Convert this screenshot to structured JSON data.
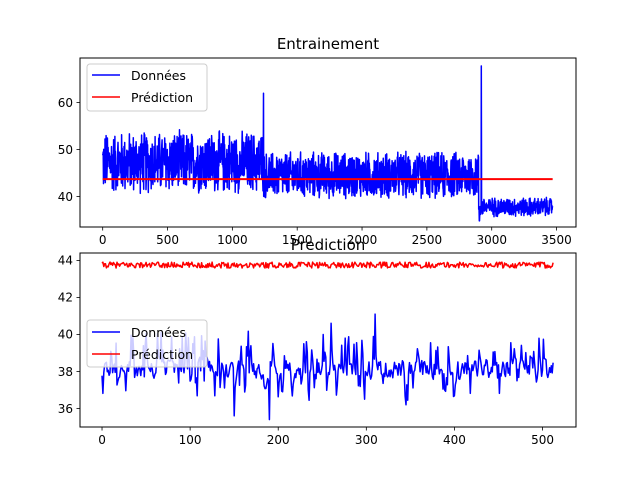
{
  "chart_data": [
    {
      "type": "line",
      "title": "Entrainement",
      "xlabel": "",
      "ylabel": "",
      "xlim": [
        -175,
        3650
      ],
      "ylim": [
        33.5,
        69.5
      ],
      "x_ticks": [
        0,
        500,
        1000,
        1500,
        2000,
        2500,
        3000,
        3500
      ],
      "y_ticks": [
        40,
        50,
        60
      ],
      "grid": false,
      "legend_position": "upper-left",
      "series": [
        {
          "name": "Données",
          "color": "#0000ff",
          "x_start": 0,
          "x_end": 3470,
          "segments": [
            {
              "x_from": 0,
              "x_to": 1240,
              "low": 40,
              "high": 54.5
            },
            {
              "x_from": 1240,
              "x_to": 2900,
              "low": 39,
              "high": 50
            },
            {
              "x_from": 2900,
              "x_to": 3470,
              "low": 35.5,
              "high": 40
            }
          ],
          "spikes": [
            {
              "x": 1240,
              "y": 62
            },
            {
              "x": 2920,
              "y": 67.8
            },
            {
              "x": 2905,
              "y": 34.8
            }
          ]
        },
        {
          "name": "Prédiction",
          "color": "#ff0000",
          "x": [
            0,
            3470
          ],
          "y": [
            43.7,
            43.7
          ]
        }
      ]
    },
    {
      "type": "line",
      "title": "Prediction",
      "xlabel": "",
      "ylabel": "",
      "xlim": [
        -25,
        538
      ],
      "ylim": [
        35,
        44.4
      ],
      "x_ticks": [
        0,
        100,
        200,
        300,
        400,
        500
      ],
      "y_ticks": [
        36,
        38,
        40,
        42,
        44
      ],
      "grid": false,
      "legend_position": "center-left",
      "series": [
        {
          "name": "Données",
          "color": "#0000ff",
          "x_start": 0,
          "x_end": 512,
          "baseline": 38,
          "range": [
            35.4,
            42
          ],
          "notable_points": [
            {
              "x": 150,
              "y": 41.9
            },
            {
              "x": 150,
              "y": 35.6
            },
            {
              "x": 190,
              "y": 35.4
            },
            {
              "x": 310,
              "y": 41.1
            },
            {
              "x": 260,
              "y": 40.6
            }
          ]
        },
        {
          "name": "Prédiction",
          "color": "#ff0000",
          "x_start": 0,
          "x_end": 512,
          "mean": 43.75,
          "range": [
            43.55,
            43.95
          ]
        }
      ]
    }
  ]
}
